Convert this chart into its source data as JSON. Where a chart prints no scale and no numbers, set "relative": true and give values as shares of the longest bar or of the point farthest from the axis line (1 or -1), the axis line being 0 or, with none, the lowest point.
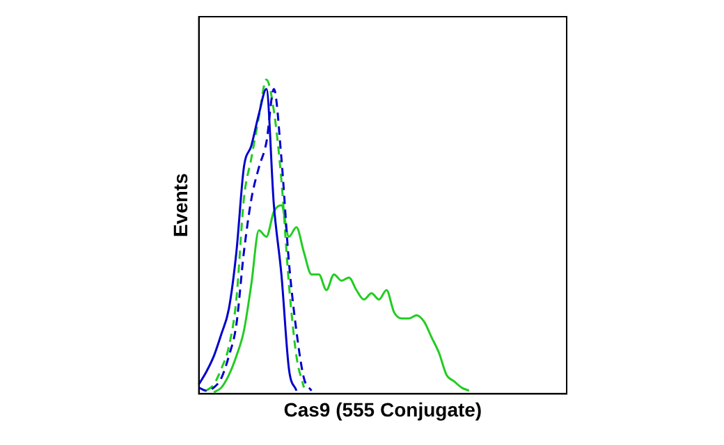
{
  "chart_data": {
    "type": "line",
    "relative": true,
    "xlabel": "Cas9 (555 Conjugate)",
    "ylabel": "Events",
    "legend": false,
    "grid": false,
    "marker": "none",
    "categories": [
      null,
      null,
      null,
      null,
      null,
      null,
      null,
      null,
      null,
      null,
      null,
      null,
      null,
      null,
      null,
      null,
      null,
      null,
      null,
      null,
      null,
      null,
      null,
      null,
      null,
      null,
      null,
      null,
      null,
      null,
      null,
      null,
      null,
      null,
      null,
      null,
      null,
      null,
      null,
      null,
      null,
      null,
      null,
      null,
      null,
      null,
      null,
      null,
      null,
      null
    ],
    "series": [
      {
        "color": "#0000cc",
        "line_style": "solid",
        "values": [
          0.03,
          0.07,
          0.12,
          0.19,
          0.27,
          0.45,
          0.72,
          0.79,
          0.89,
          0.97,
          0.6,
          0.38,
          0.08,
          0.01,
          null,
          null,
          null,
          null,
          null,
          null,
          null,
          null,
          null,
          null,
          null,
          null,
          null,
          null,
          null,
          null,
          null,
          null,
          null,
          null,
          null,
          null,
          null,
          null,
          null,
          null,
          null,
          null,
          null,
          null,
          null,
          null,
          null,
          null,
          null,
          null
        ]
      },
      {
        "color": "#0000cc",
        "line_style": "dashed",
        "values": [
          0.02,
          0.01,
          0.02,
          0.05,
          0.12,
          0.22,
          0.45,
          0.62,
          0.72,
          0.8,
          0.97,
          0.75,
          0.42,
          0.2,
          0.05,
          0.01,
          null,
          null,
          null,
          null,
          null,
          null,
          null,
          null,
          null,
          null,
          null,
          null,
          null,
          null,
          null,
          null,
          null,
          null,
          null,
          null,
          null,
          null,
          null,
          null,
          null,
          null,
          null,
          null,
          null,
          null,
          null,
          null,
          null,
          null
        ]
      },
      {
        "color": "#22cc22",
        "line_style": "dashed",
        "values": [
          null,
          0.01,
          0.03,
          0.08,
          0.15,
          0.3,
          0.62,
          0.75,
          0.88,
          1,
          0.9,
          0.68,
          0.35,
          0.12,
          0.02,
          null,
          null,
          null,
          null,
          null,
          null,
          null,
          null,
          null,
          null,
          null,
          null,
          null,
          null,
          null,
          null,
          null,
          null,
          null,
          null,
          null,
          null,
          null,
          null,
          null,
          null,
          null,
          null,
          null,
          null,
          null,
          null,
          null,
          null,
          null
        ]
      },
      {
        "color": "#22cc22",
        "line_style": "solid",
        "values": [
          null,
          null,
          0.005,
          0.02,
          0.06,
          0.12,
          0.2,
          0.35,
          0.52,
          0.5,
          0.58,
          0.6,
          0.5,
          0.53,
          0.45,
          0.38,
          0.38,
          0.33,
          0.38,
          0.36,
          0.37,
          0.33,
          0.3,
          0.32,
          0.3,
          0.33,
          0.26,
          0.24,
          0.24,
          0.25,
          0.23,
          0.18,
          0.13,
          0.06,
          0.04,
          0.02,
          0.01,
          null,
          null,
          null,
          null,
          null,
          null,
          null,
          null,
          null,
          null,
          null,
          null,
          null
        ]
      }
    ]
  }
}
